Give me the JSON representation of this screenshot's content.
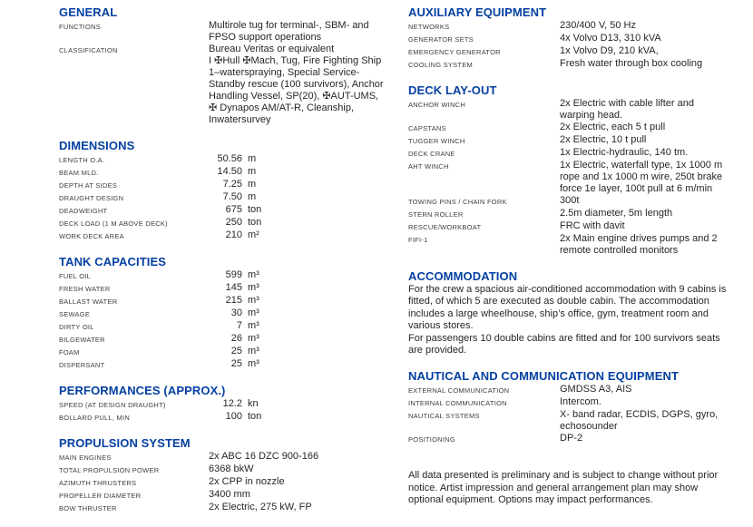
{
  "colors": {
    "heading_blue": "#0540a2",
    "label_gray": "#3c3c46",
    "body_text": "#26262d",
    "background": "#ffffff"
  },
  "columns": [
    {
      "name": "left",
      "sections": [
        {
          "title": "GENERAL",
          "layout": "lv",
          "rows": [
            {
              "label": "FUNCTIONS",
              "value": "Multirole tug for terminal-, SBM- and\nFPSO support operations"
            },
            {
              "label": "CLASSIFICATION",
              "value": "Bureau Veritas or equivalent\nI ✠Hull ✠Mach, Tug, Fire Fighting Ship\n1–waterspraying, Special Service-\nStandby rescue (100 survivors), Anchor\nHandling Vessel, SP(20), ✠AUT-UMS,\n✠ Dynapos AM/AT-R, Cleanship,\nInwatersurvey"
            }
          ]
        },
        {
          "title": "DIMENSIONS",
          "layout": "num",
          "rows": [
            {
              "label": "LENGTH O.A.",
              "value": "50.56",
              "unit": "m"
            },
            {
              "label": "BEAM MLD.",
              "value": "14.50",
              "unit": "m"
            },
            {
              "label": "DEPTH AT SIDES",
              "value": "7.25",
              "unit": "m"
            },
            {
              "label": "DRAUGHT DESIGN",
              "value": "7.50",
              "unit": "m"
            },
            {
              "label": "DEADWEIGHT",
              "value": "675",
              "unit": "ton"
            },
            {
              "label": "DECK LOAD (1 M ABOVE DECK)",
              "value": "250",
              "unit": "ton"
            },
            {
              "label": "WORK DECK AREA",
              "value": "210",
              "unit": "m²"
            }
          ]
        },
        {
          "title": "TANK CAPACITIES",
          "layout": "num",
          "rows": [
            {
              "label": "FUEL OIL",
              "value": "599",
              "unit": "m³"
            },
            {
              "label": "FRESH WATER",
              "value": "145",
              "unit": "m³"
            },
            {
              "label": "BALLAST WATER",
              "value": "215",
              "unit": "m³"
            },
            {
              "label": "SEWAGE",
              "value": "30",
              "unit": "m³"
            },
            {
              "label": "DIRTY OIL",
              "value": "7",
              "unit": "m³"
            },
            {
              "label": "BILGEWATER",
              "value": "26",
              "unit": "m³"
            },
            {
              "label": "FOAM",
              "value": "25",
              "unit": "m³"
            },
            {
              "label": "DISPERSANT",
              "value": "25",
              "unit": "m³"
            }
          ]
        },
        {
          "title": "PERFORMANCES (APPROX.)",
          "layout": "num",
          "rows": [
            {
              "label": "SPEED (AT DESIGN DRAUGHT)",
              "value": "12.2",
              "unit": "kn"
            },
            {
              "label": "BOLLARD PULL, MIN",
              "value": "100",
              "unit": "ton"
            }
          ]
        },
        {
          "title": "PROPULSION SYSTEM",
          "layout": "lv",
          "rows": [
            {
              "label": "MAIN ENGINES",
              "value": "2x ABC 16 DZC 900-166"
            },
            {
              "label": "TOTAL PROPULSION POWER",
              "value": "6368 bkW"
            },
            {
              "label": "AZIMUTH THRUSTERS",
              "value": "2x CPP in nozzle"
            },
            {
              "label": "PROPELLER DIAMETER",
              "value": "3400 mm"
            },
            {
              "label": "BOW THRUSTER",
              "value": "2x Electric, 275 kW, FP"
            }
          ]
        }
      ]
    },
    {
      "name": "right",
      "sections": [
        {
          "title": "AUXILIARY EQUIPMENT",
          "layout": "lv",
          "rows": [
            {
              "label": "NETWORKS",
              "value": "230/400 V, 50 Hz"
            },
            {
              "label": "GENERATOR SETS",
              "value": "4x Volvo D13, 310 kVA"
            },
            {
              "label": "EMERGENCY GENERATOR",
              "value": "1x Volvo D9, 210 kVA,"
            },
            {
              "label": "COOLING SYSTEM",
              "value": "Fresh water through box cooling"
            }
          ]
        },
        {
          "title": "DECK LAY-OUT",
          "layout": "lv",
          "rows": [
            {
              "label": "ANCHOR WINCH",
              "value": "2x Electric with cable lifter and\nwarping head."
            },
            {
              "label": "CAPSTANS",
              "value": "2x Electric, each 5 t pull"
            },
            {
              "label": "TUGGER WINCH",
              "value": "2x Electric, 10 t pull"
            },
            {
              "label": "DECK CRANE",
              "value": "1x Electric-hydraulic, 140 tm."
            },
            {
              "label": "AHT WINCH",
              "value": "1x Electric, waterfall type, 1x 1000 m\nrope and 1x 1000 m wire, 250t brake\nforce 1e layer, 100t pull at 6 m/min"
            },
            {
              "label": "TOWING PINS / CHAIN FORK",
              "value": "300t"
            },
            {
              "label": "STERN ROLLER",
              "value": "2.5m diameter, 5m length"
            },
            {
              "label": "RESCUE/WORKBOAT",
              "value": "FRC with davit"
            },
            {
              "label": "FIFI-1",
              "value": "2x Main engine drives pumps and 2\nremote controlled monitors"
            }
          ]
        },
        {
          "title": "ACCOMMODATION",
          "layout": "para",
          "text": "For the crew a spacious air-conditioned accommodation with 9 cabins is\nfitted, of which 5 are executed as double cabin. The accommodation\nincludes a large wheelhouse, ship’s office, gym, treatment room and\nvarious stores.\nFor passengers 10 double cabins are fitted and for 100 survivors seats\nare provided."
        },
        {
          "title": "NAUTICAL AND COMMUNICATION EQUIPMENT",
          "layout": "lv",
          "rows": [
            {
              "label": "EXTERNAL COMMUNICATION",
              "value": "GMDSS A3, AIS"
            },
            {
              "label": "INTERNAL COMMUNICATION",
              "value": "Intercom."
            },
            {
              "label": "NAUTICAL SYSTEMS",
              "value": "X- band radar, ECDIS, DGPS, gyro,\nechosounder"
            },
            {
              "label": "POSITIONING",
              "value": "DP-2"
            }
          ]
        }
      ],
      "footer": "All data presented is preliminary and is subject to change without prior\nnotice. Artist impression and general arrangement plan may show\noptional equipment. Options may impact performances."
    }
  ]
}
